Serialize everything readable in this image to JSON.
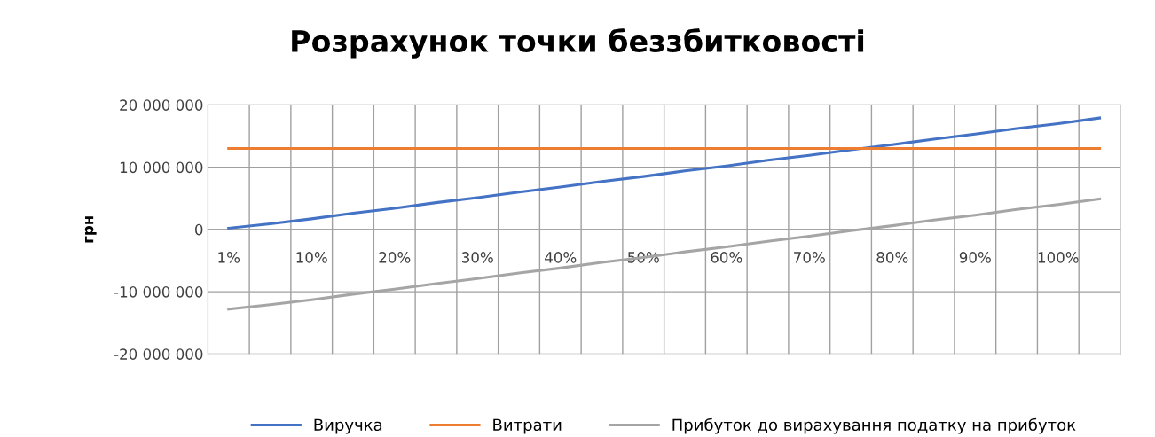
{
  "chart_data": {
    "type": "line",
    "title": "Розрахунок точки беззбитковості",
    "ylabel": "грн",
    "categories": [
      "1%",
      null,
      "10%",
      null,
      "20%",
      null,
      "30%",
      null,
      "40%",
      null,
      "50%",
      null,
      "60%",
      null,
      "70%",
      null,
      "80%",
      null,
      "90%",
      null,
      "100%",
      null
    ],
    "series": [
      {
        "name": "Виручка",
        "color": "#4472c4",
        "values": [
          200000,
          900000,
          1700000,
          2600000,
          3400000,
          4300000,
          5100000,
          6000000,
          6800000,
          7700000,
          8500000,
          9400000,
          10200000,
          11100000,
          11900000,
          12800000,
          13600000,
          14500000,
          15300000,
          16200000,
          17000000,
          17900000
        ]
      },
      {
        "name": "Витрати",
        "color": "#ed7d31",
        "values": [
          13000000,
          13000000,
          13000000,
          13000000,
          13000000,
          13000000,
          13000000,
          13000000,
          13000000,
          13000000,
          13000000,
          13000000,
          13000000,
          13000000,
          13000000,
          13000000,
          13000000,
          13000000,
          13000000,
          13000000,
          13000000,
          13000000
        ]
      },
      {
        "name": "Прибуток до вирахування податку на прибуток",
        "color": "#a5a5a5",
        "values": [
          -12800000,
          -12100000,
          -11300000,
          -10400000,
          -9600000,
          -8700000,
          -7900000,
          -7000000,
          -6200000,
          -5300000,
          -4500000,
          -3600000,
          -2800000,
          -1900000,
          -1100000,
          -200000,
          600000,
          1500000,
          2300000,
          3200000,
          4000000,
          4900000
        ]
      }
    ],
    "ylim": [
      -20000000,
      20000000
    ],
    "yticks": [
      {
        "value": -20000000,
        "label": "-20 000 000"
      },
      {
        "value": -10000000,
        "label": "-10 000 000"
      },
      {
        "value": 0,
        "label": "0"
      },
      {
        "value": 10000000,
        "label": "10 000 000"
      },
      {
        "value": 20000000,
        "label": "20 000 000"
      }
    ],
    "grid": true,
    "legend": "bottom",
    "marker": "none",
    "line_style": "solid"
  }
}
